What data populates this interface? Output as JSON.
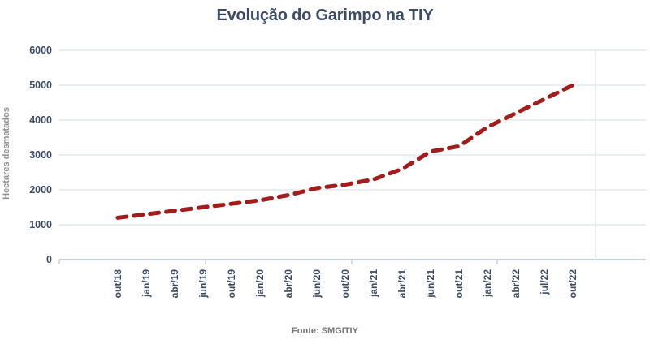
{
  "chart_data": {
    "type": "line",
    "title": "Evolução do Garimpo na TIY",
    "ylabel": "Hectares desmatados",
    "source": "Fonte: SMGITIY",
    "categories": [
      "out/18",
      "jan/19",
      "abr/19",
      "jun/19",
      "out/19",
      "jan/20",
      "abr/20",
      "jun/20",
      "out/20",
      "jan/21",
      "abr/21",
      "jun/21",
      "out/21",
      "jan/22",
      "abr/22",
      "jul/22",
      "out/22"
    ],
    "series": [
      {
        "name": "Hectares desmatados",
        "values": [
          1200,
          1300,
          1400,
          1500,
          1600,
          1700,
          1850,
          2050,
          2150,
          2300,
          2600,
          3100,
          3250,
          3800,
          4200,
          4600,
          5000
        ]
      }
    ],
    "ylim": [
      0,
      6000
    ],
    "yticks": [
      0,
      1000,
      2000,
      3000,
      4000,
      5000,
      6000
    ],
    "grid": "horizontal",
    "line_style": "dashed",
    "legend": "none",
    "colors": {
      "line": "#a21c1c",
      "tick_text": "#3c4b63",
      "grid": "#e3e7ed",
      "axis_line": "#c9cfd9",
      "axis_title": "#8f9193",
      "source_text": "#757575"
    }
  }
}
